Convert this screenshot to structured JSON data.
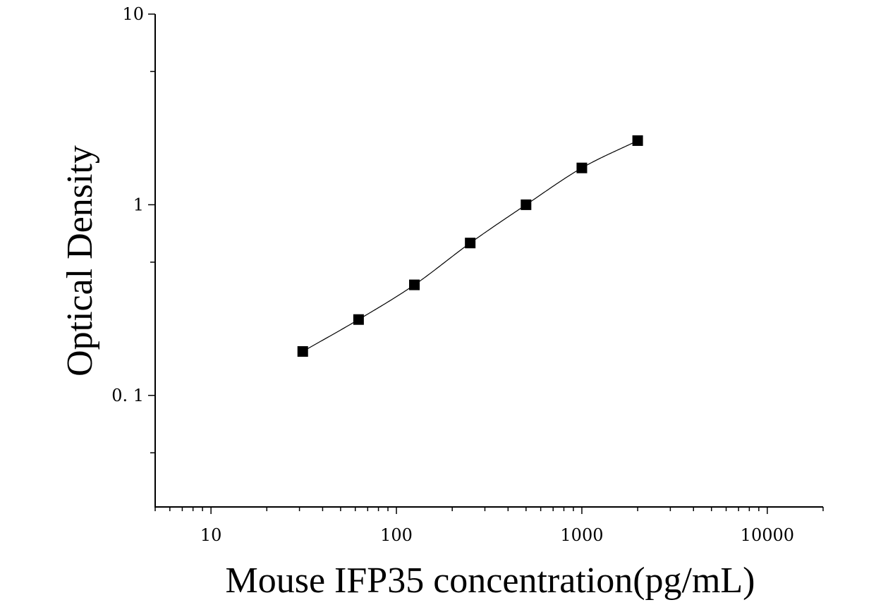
{
  "chart_data": {
    "type": "scatter",
    "xlabel": "Mouse IFP35 concentration(pg/mL)",
    "ylabel": "Optical Density",
    "x_scale": "log",
    "y_scale": "log",
    "xlim": [
      5,
      20000
    ],
    "ylim": [
      0.026,
      10
    ],
    "x_ticks": [
      10,
      100,
      1000,
      10000
    ],
    "x_tick_labels": [
      "10",
      "100",
      "1000",
      "10000"
    ],
    "y_ticks": [
      0.1,
      1,
      10
    ],
    "y_tick_labels": [
      "0. 1",
      "1",
      "10"
    ],
    "grid": false,
    "legend": false,
    "marker": "square",
    "color": "#000000",
    "series": [
      {
        "x": [
          31.25,
          62.5,
          125,
          250,
          500,
          1000,
          2000
        ],
        "y": [
          0.17,
          0.25,
          0.38,
          0.63,
          1.0,
          1.56,
          2.17
        ]
      }
    ]
  }
}
